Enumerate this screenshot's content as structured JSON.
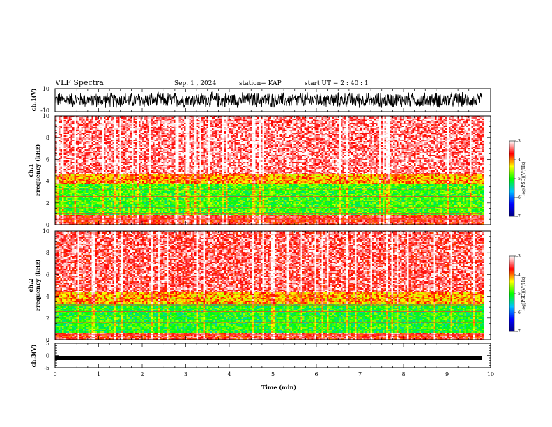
{
  "header": {
    "title": "VLF Spectra",
    "date": "Sep. 1 , 2024",
    "station": "station= KAP",
    "start": "start UT = 2 : 40 : 1"
  },
  "chart_data": [
    {
      "type": "line",
      "panel": "ch.1 waveform",
      "ylabel": "ch.1(V)",
      "ylim": [
        -10,
        10
      ],
      "yticks": [
        "10",
        "-10"
      ],
      "xlim": [
        0,
        10
      ],
      "data_end_min": 9.8,
      "trace": "dense noisy voltage trace between about -8 and +8 V",
      "color": "#000000"
    },
    {
      "type": "heatmap",
      "panel": "ch.1 spectrogram",
      "ylabel_line1": "ch.1",
      "ylabel_line2": "Frequency (kHz)",
      "ylim": [
        0,
        10
      ],
      "yticks": [
        "0",
        "2",
        "4",
        "6",
        "8",
        "10"
      ],
      "xlim": [
        0,
        10
      ],
      "data_end_min": 9.8,
      "colorbar": {
        "label": "log(PSD)(V²/Hz)",
        "ticks": [
          "-3",
          "-4",
          "-5",
          "-6",
          "-7"
        ],
        "range": [
          -7,
          -3
        ],
        "colors": [
          "#000080",
          "#0000ff",
          "#00c0ff",
          "#00ff00",
          "#ffff00",
          "#ff0000",
          "#ffffff"
        ]
      },
      "bands": [
        {
          "from_khz": 0.0,
          "to_khz": 0.9,
          "level": -3.6
        },
        {
          "from_khz": 0.9,
          "to_khz": 3.7,
          "level": -4.9
        },
        {
          "from_khz": 3.7,
          "to_khz": 4.6,
          "level": -4.1
        },
        {
          "from_khz": 4.6,
          "to_khz": 10.0,
          "level": -3.3
        }
      ]
    },
    {
      "type": "heatmap",
      "panel": "ch.2 spectrogram",
      "ylabel_line1": "ch.2",
      "ylabel_line2": "Frequency (kHz)",
      "ylim": [
        0,
        10
      ],
      "yticks": [
        "0",
        "2",
        "4",
        "6",
        "8",
        "10"
      ],
      "xlim": [
        0,
        10
      ],
      "data_end_min": 9.8,
      "colorbar": {
        "label": "log(PSD)(V²/Hz)",
        "ticks": [
          "-3",
          "-4",
          "-5",
          "-6",
          "-7"
        ],
        "range": [
          -7,
          -3
        ],
        "colors": [
          "#000080",
          "#0000ff",
          "#00c0ff",
          "#00ff00",
          "#ffff00",
          "#ff0000",
          "#ffffff"
        ]
      },
      "bands": [
        {
          "from_khz": 0.0,
          "to_khz": 0.7,
          "level": -3.6
        },
        {
          "from_khz": 0.7,
          "to_khz": 3.3,
          "level": -5.0
        },
        {
          "from_khz": 3.3,
          "to_khz": 4.3,
          "level": -4.1
        },
        {
          "from_khz": 4.3,
          "to_khz": 10.0,
          "level": -3.4
        }
      ]
    },
    {
      "type": "line",
      "panel": "ch.3 waveform",
      "ylabel": "ch.3(V)",
      "ylim": [
        -5,
        5
      ],
      "yticks": [
        "5",
        "0",
        "-5"
      ],
      "xlim": [
        0,
        10
      ],
      "xticks": [
        "0",
        "1",
        "2",
        "3",
        "4",
        "5",
        "6",
        "7",
        "8",
        "9",
        "10"
      ],
      "xlabel": "Time (min)",
      "data_end_min": 9.8,
      "trace": "thin dense band centered near -1 V",
      "level_v": -1,
      "color": "#000000"
    }
  ]
}
